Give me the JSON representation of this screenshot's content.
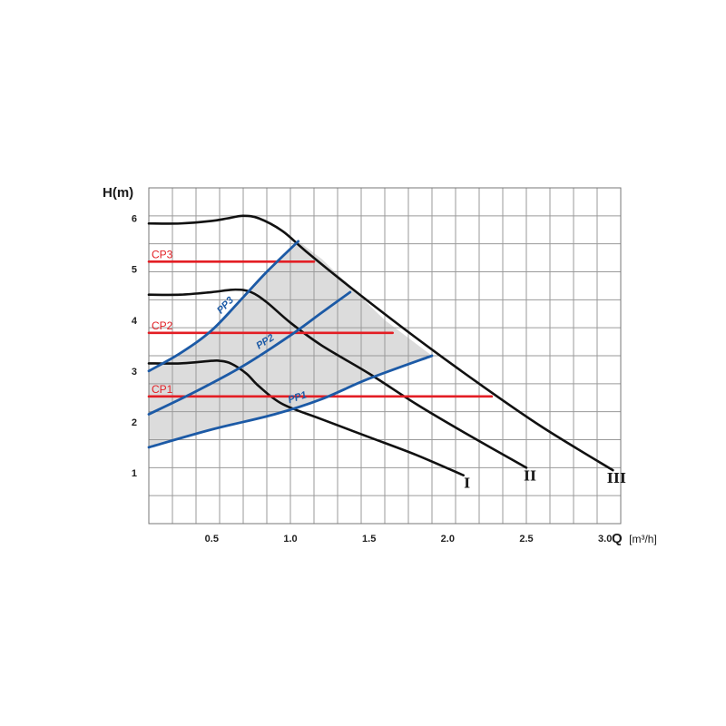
{
  "chart_data": {
    "type": "line",
    "title": "",
    "xlabel": "Q",
    "xlabel_unit": "[m³/h]",
    "ylabel": "H(m)",
    "xlim": [
      0.1,
      3.1
    ],
    "ylim": [
      0,
      6.6
    ],
    "grid": true,
    "x_ticks": [
      {
        "value": 0.5,
        "label": "0.5"
      },
      {
        "value": 1.0,
        "label": "1.0"
      },
      {
        "value": 1.5,
        "label": "1.5"
      },
      {
        "value": 2.0,
        "label": "2.0"
      },
      {
        "value": 2.5,
        "label": "2.5"
      },
      {
        "value": 3.0,
        "label": "3.0"
      }
    ],
    "y_ticks": [
      {
        "value": 1,
        "label": "1"
      },
      {
        "value": 2,
        "label": "2"
      },
      {
        "value": 3,
        "label": "3"
      },
      {
        "value": 4,
        "label": "4"
      },
      {
        "value": 5,
        "label": "5"
      },
      {
        "value": 6,
        "label": "6"
      }
    ],
    "x_grid_step": 0.15,
    "y_grid_step": 0.55,
    "colors": {
      "speed": "#111111",
      "constant_pressure": "#e31e24",
      "proportional_pressure": "#1c5aa6",
      "area": "#dcdcdc",
      "grid": "#9a9a9a"
    },
    "series": [
      {
        "name": "I",
        "kind": "speed",
        "x": [
          0.1,
          0.3,
          0.5,
          0.55,
          0.62,
          0.72,
          0.8,
          0.95,
          1.2,
          1.5,
          1.8,
          2.1
        ],
        "y": [
          3.15,
          3.15,
          3.2,
          3.2,
          3.15,
          2.95,
          2.7,
          2.35,
          2.05,
          1.7,
          1.35,
          0.95
        ]
      },
      {
        "name": "II",
        "kind": "speed",
        "x": [
          0.1,
          0.3,
          0.5,
          0.65,
          0.75,
          0.85,
          1.0,
          1.2,
          1.5,
          1.8,
          2.1,
          2.5
        ],
        "y": [
          4.5,
          4.5,
          4.55,
          4.6,
          4.55,
          4.35,
          3.95,
          3.5,
          2.95,
          2.35,
          1.8,
          1.1
        ]
      },
      {
        "name": "III",
        "kind": "speed",
        "x": [
          0.1,
          0.3,
          0.5,
          0.6,
          0.7,
          0.8,
          0.95,
          1.1,
          1.4,
          1.8,
          2.2,
          2.6,
          3.05
        ],
        "y": [
          5.9,
          5.9,
          5.95,
          6.0,
          6.05,
          6.0,
          5.75,
          5.35,
          4.6,
          3.65,
          2.75,
          1.9,
          1.05
        ]
      },
      {
        "name": "CP1",
        "kind": "constant_pressure",
        "x": [
          0.1,
          2.28
        ],
        "y": [
          2.5,
          2.5
        ]
      },
      {
        "name": "CP2",
        "kind": "constant_pressure",
        "x": [
          0.1,
          1.65
        ],
        "y": [
          3.75,
          3.75
        ]
      },
      {
        "name": "CP3",
        "kind": "constant_pressure",
        "x": [
          0.1,
          1.15
        ],
        "y": [
          5.15,
          5.15
        ]
      },
      {
        "name": "PP1",
        "kind": "proportional_pressure",
        "x": [
          0.1,
          0.5,
          0.9,
          1.2,
          1.5,
          1.9
        ],
        "y": [
          1.5,
          1.85,
          2.15,
          2.45,
          2.85,
          3.3
        ]
      },
      {
        "name": "PP2",
        "kind": "proportional_pressure",
        "x": [
          0.1,
          0.4,
          0.7,
          1.0,
          1.2,
          1.38
        ],
        "y": [
          2.15,
          2.6,
          3.1,
          3.7,
          4.15,
          4.55
        ]
      },
      {
        "name": "PP3",
        "kind": "proportional_pressure",
        "x": [
          0.1,
          0.3,
          0.5,
          0.7,
          0.85,
          1.05
        ],
        "y": [
          3.0,
          3.35,
          3.8,
          4.45,
          4.95,
          5.55
        ]
      }
    ],
    "operating_area": {
      "x": [
        0.1,
        0.3,
        0.5,
        0.7,
        0.85,
        1.05,
        1.2,
        1.4,
        1.6,
        1.9,
        1.5,
        1.2,
        0.9,
        0.5,
        0.1
      ],
      "y": [
        3.0,
        3.35,
        3.8,
        4.45,
        4.95,
        5.55,
        5.2,
        4.6,
        4.0,
        3.3,
        2.85,
        2.45,
        2.15,
        1.85,
        1.5
      ]
    }
  }
}
